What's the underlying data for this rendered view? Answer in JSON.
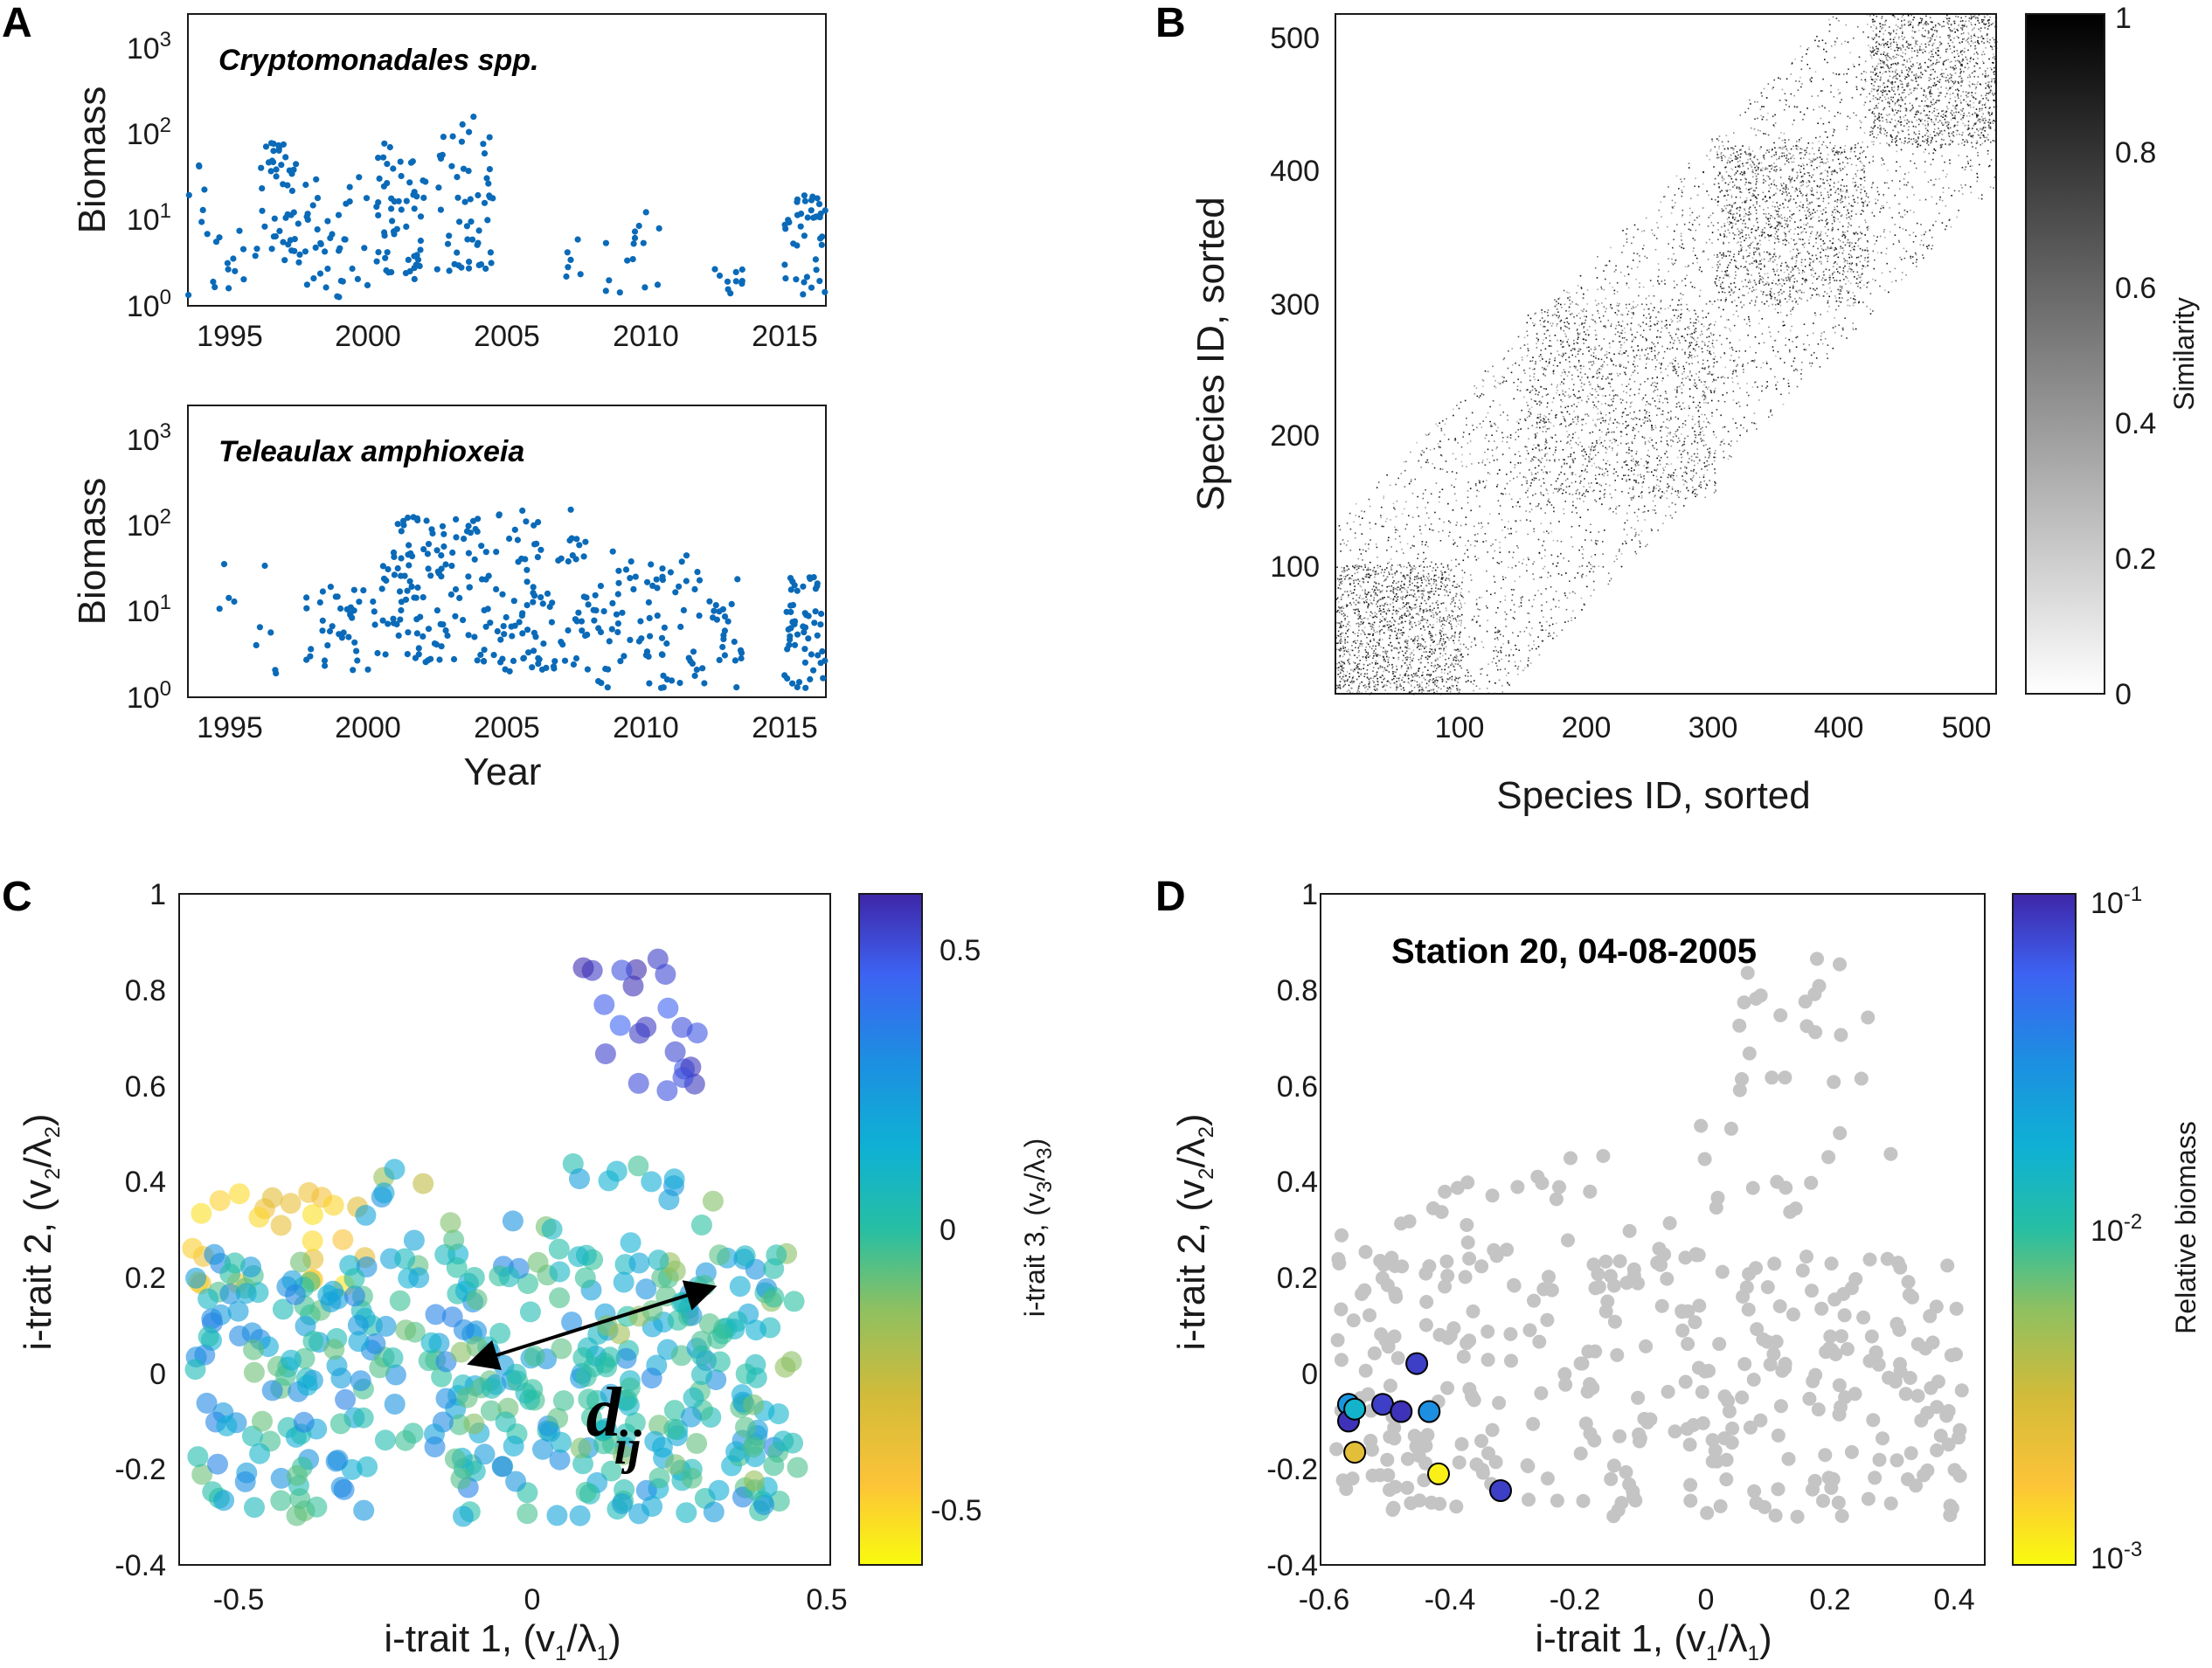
{
  "panels": {
    "A": {
      "letter": "A",
      "x_ticks": [
        "1995",
        "2000",
        "2005",
        "2010",
        "2015"
      ],
      "x_label": "Year",
      "y_label": "Biomass",
      "y_ticks": [
        "10",
        "10",
        "10",
        "10"
      ],
      "y_tick_exponents": [
        "0",
        "1",
        "2",
        "3"
      ],
      "top": {
        "species": "Cryptomonadales spp."
      },
      "bottom": {
        "species": "Teleaulax amphioxeia"
      }
    },
    "B": {
      "letter": "B",
      "x_label": "Species ID, sorted",
      "y_label": "Species ID, sorted",
      "x_ticks": [
        "100",
        "200",
        "300",
        "400",
        "500"
      ],
      "y_ticks": [
        "100",
        "200",
        "300",
        "400",
        "500"
      ],
      "colorbar_label": "Similarity",
      "colorbar_ticks": [
        "0",
        "0.2",
        "0.4",
        "0.6",
        "0.8",
        "1"
      ]
    },
    "C": {
      "letter": "C",
      "x_label_main": "i-trait 1, (v",
      "x_label_sub1": "1",
      "x_label_mid": "/λ",
      "x_label_sub2": "1",
      "x_label_end": ")",
      "y_label_main": "i-trait 2, (v",
      "y_label_sub1": "2",
      "y_label_mid": "/λ",
      "y_label_sub2": "2",
      "y_label_end": ")",
      "x_ticks": [
        "-0.5",
        "0",
        "0.5"
      ],
      "y_ticks": [
        "-0.4",
        "-0.2",
        "0",
        "0.2",
        "0.4",
        "0.6",
        "0.8",
        "1"
      ],
      "colorbar_label_main": "i-trait 3, (v",
      "colorbar_label_sub1": "3",
      "colorbar_label_mid": "/λ",
      "colorbar_label_sub2": "3",
      "colorbar_label_end": ")",
      "colorbar_ticks": [
        "-0.5",
        "0",
        "0.5"
      ],
      "annotation_main": "d",
      "annotation_sub": "ij"
    },
    "D": {
      "letter": "D",
      "title": "Station 20, 04-08-2005",
      "x_label_main": "i-trait 1, (v",
      "x_label_sub1": "1",
      "x_label_mid": "/λ",
      "x_label_sub2": "1",
      "x_label_end": ")",
      "y_label_main": "i-trait 2, (v",
      "y_label_sub1": "2",
      "y_label_mid": "/λ",
      "y_label_sub2": "2",
      "y_label_end": ")",
      "x_ticks": [
        "-0.6",
        "-0.4",
        "-0.2",
        "0",
        "0.2",
        "0.4"
      ],
      "y_ticks": [
        "-0.4",
        "-0.2",
        "0",
        "0.2",
        "0.4",
        "0.6",
        "0.8",
        "1"
      ],
      "colorbar_label": "Relative biomass",
      "colorbar_ticks": [
        "10",
        "10",
        "10"
      ],
      "colorbar_tick_exponents": [
        "-3",
        "-2",
        "-1"
      ]
    }
  },
  "colors": {
    "biomass_dot": "#0a6ab8",
    "background_species": "#c4c4c4",
    "axis": "#1a1a1a"
  },
  "chart_data": [
    {
      "id": "A-top",
      "type": "scatter",
      "title": "Cryptomonadales spp.",
      "xlabel": "",
      "ylabel": "Biomass",
      "xlim": [
        1993.0,
        2016.0
      ],
      "ylim_log10": [
        0,
        3.4
      ],
      "yscale": "log",
      "generator": "seeded",
      "clusters": [
        {
          "x": [
            1993.0,
            1994.0
          ],
          "y": [
            0.1,
            1.7
          ],
          "n": 10
        },
        {
          "x": [
            1994.0,
            1995.5
          ],
          "y": [
            0.2,
            0.9
          ],
          "n": 12
        },
        {
          "x": [
            1995.5,
            1997.0
          ],
          "y": [
            0.5,
            2.0
          ],
          "n": 45
        },
        {
          "x": [
            1997.0,
            1999.5
          ],
          "y": [
            0.1,
            1.6
          ],
          "n": 40
        },
        {
          "x": [
            1999.5,
            2001.5
          ],
          "y": [
            0.3,
            1.9
          ],
          "n": 55
        },
        {
          "x": [
            2001.5,
            2004.0
          ],
          "y": [
            0.4,
            2.3
          ],
          "n": 55
        },
        {
          "x": [
            2006.5,
            2007.2
          ],
          "y": [
            0.2,
            0.8
          ],
          "n": 6
        },
        {
          "x": [
            2008.0,
            2010.0
          ],
          "y": [
            0.1,
            1.1
          ],
          "n": 15
        },
        {
          "x": [
            2011.5,
            2013.0
          ],
          "y": [
            0.1,
            0.8
          ],
          "n": 10
        },
        {
          "x": [
            2014.5,
            2016.0
          ],
          "y": [
            0.1,
            1.3
          ],
          "n": 40
        }
      ]
    },
    {
      "id": "A-bottom",
      "type": "scatter",
      "title": "Teleaulax amphioxeia",
      "xlabel": "Year",
      "ylabel": "Biomass",
      "xlim": [
        1993.0,
        2016.0
      ],
      "ylim_log10": [
        0,
        3.4
      ],
      "yscale": "log",
      "generator": "seeded",
      "clusters": [
        {
          "x": [
            1994.0,
            1996.5
          ],
          "y": [
            0.0,
            1.8
          ],
          "n": 10
        },
        {
          "x": [
            1997.0,
            2000.0
          ],
          "y": [
            0.3,
            1.3
          ],
          "n": 40
        },
        {
          "x": [
            2000.0,
            2003.5
          ],
          "y": [
            0.4,
            2.1
          ],
          "n": 110
        },
        {
          "x": [
            2003.5,
            2007.5
          ],
          "y": [
            0.3,
            2.2
          ],
          "n": 110
        },
        {
          "x": [
            2007.5,
            2011.0
          ],
          "y": [
            0.1,
            1.7
          ],
          "n": 70
        },
        {
          "x": [
            2011.0,
            2013.0
          ],
          "y": [
            0.1,
            1.5
          ],
          "n": 35
        },
        {
          "x": [
            2014.5,
            2016.0
          ],
          "y": [
            0.1,
            1.4
          ],
          "n": 55
        }
      ]
    },
    {
      "id": "B",
      "type": "heatmap",
      "title": "",
      "xlabel": "Species ID, sorted",
      "ylabel": "Species ID, sorted",
      "xlim": [
        1,
        520
      ],
      "ylim": [
        1,
        520
      ],
      "colorbar": {
        "label": "Similarity",
        "range": [
          0,
          1
        ]
      },
      "generator": "seeded",
      "description": "sparse similarity matrix, dense blocks along the diagonal near 1-100 and 420-520",
      "dense_blocks": [
        {
          "range": [
            1,
            100
          ],
          "density": 0.08
        },
        {
          "range": [
            150,
            300
          ],
          "density": 0.035
        },
        {
          "range": [
            300,
            420
          ],
          "density": 0.03
        },
        {
          "range": [
            420,
            520
          ],
          "density": 0.09
        }
      ],
      "n_points": 9000
    },
    {
      "id": "C",
      "type": "scatter",
      "title": "",
      "xlabel": "i-trait 1, (v1/λ1)",
      "ylabel": "i-trait 2, (v2/λ2)",
      "xlim": [
        -0.62,
        0.5
      ],
      "ylim": [
        -0.4,
        1.0
      ],
      "colorbar": {
        "label": "i-trait 3, (v3/λ3)",
        "range": [
          -0.6,
          0.6
        ]
      },
      "generator": "seeded",
      "arrow": {
        "from": [
          -0.12,
          0.02
        ],
        "to": [
          0.3,
          0.18
        ]
      },
      "annotation": {
        "text": "dij",
        "at": [
          0.08,
          -0.13
        ]
      },
      "clusters": [
        {
          "x": [
            -0.6,
            -0.3
          ],
          "y": [
            0.18,
            0.4
          ],
          "c": [
            -0.55,
            -0.35
          ],
          "n": 25
        },
        {
          "x": [
            -0.6,
            0.42
          ],
          "y": [
            -0.3,
            0.25
          ],
          "c": [
            -0.1,
            0.35
          ],
          "n": 340
        },
        {
          "x": [
            -0.15,
            0.45
          ],
          "y": [
            -0.25,
            0.25
          ],
          "c": [
            -0.2,
            0.1
          ],
          "n": 60
        },
        {
          "x": [
            0.05,
            0.28
          ],
          "y": [
            0.58,
            0.88
          ],
          "c": [
            0.45,
            0.6
          ],
          "n": 22
        },
        {
          "x": [
            -0.3,
            0.3
          ],
          "y": [
            0.2,
            0.52
          ],
          "c": [
            -0.3,
            0.3
          ],
          "n": 30
        }
      ]
    },
    {
      "id": "D",
      "type": "scatter",
      "title": "Station 20, 04-08-2005",
      "xlabel": "i-trait 1, (v1/λ1)",
      "ylabel": "i-trait 2, (v2/λ2)",
      "xlim": [
        -0.62,
        0.45
      ],
      "ylim": [
        -0.4,
        1.0
      ],
      "colorbar": {
        "label": "Relative biomass",
        "scale": "log",
        "range_log10": [
          -3,
          -1
        ]
      },
      "generator": "seeded",
      "background_clusters": [
        {
          "x": [
            -0.6,
            -0.3
          ],
          "y": [
            0.18,
            0.4
          ],
          "n": 25
        },
        {
          "x": [
            -0.6,
            0.42
          ],
          "y": [
            -0.3,
            0.25
          ],
          "n": 330
        },
        {
          "x": [
            0.05,
            0.28
          ],
          "y": [
            0.58,
            0.88
          ],
          "n": 22
        },
        {
          "x": [
            -0.3,
            0.3
          ],
          "y": [
            0.2,
            0.52
          ],
          "n": 30
        }
      ],
      "highlighted": [
        {
          "x": -0.575,
          "y": -0.065,
          "log10_biomass": -1.55
        },
        {
          "x": -0.575,
          "y": -0.1,
          "log10_biomass": -1.05
        },
        {
          "x": -0.565,
          "y": -0.075,
          "log10_biomass": -1.8
        },
        {
          "x": -0.565,
          "y": -0.165,
          "log10_biomass": -2.6
        },
        {
          "x": -0.52,
          "y": -0.065,
          "log10_biomass": -1.1
        },
        {
          "x": -0.49,
          "y": -0.08,
          "log10_biomass": -1.05
        },
        {
          "x": -0.465,
          "y": 0.02,
          "log10_biomass": -1.1
        },
        {
          "x": -0.445,
          "y": -0.08,
          "log10_biomass": -1.5
        },
        {
          "x": -0.43,
          "y": -0.21,
          "log10_biomass": -2.95
        },
        {
          "x": -0.33,
          "y": -0.245,
          "log10_biomass": -1.1
        }
      ]
    }
  ]
}
